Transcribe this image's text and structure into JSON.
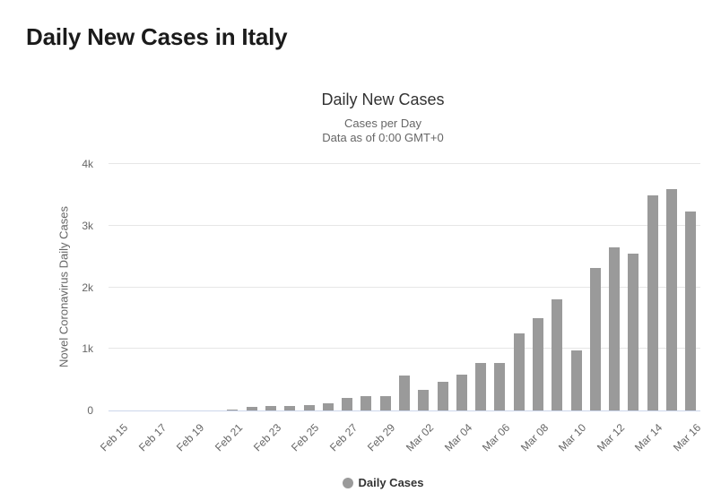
{
  "page": {
    "title": "Daily New Cases in Italy"
  },
  "chart_data": {
    "type": "bar",
    "title": "Daily New Cases",
    "subtitle_line1": "Cases per Day",
    "subtitle_line2": "Data as of 0:00 GMT+0",
    "ylabel": "Novel Coronavirus Daily Cases",
    "legend": "Daily Cases",
    "ylim": [
      0,
      4000
    ],
    "grid": true,
    "legend_position": "bottom",
    "yticks": [
      {
        "value": 0,
        "label": "0"
      },
      {
        "value": 1000,
        "label": "1k"
      },
      {
        "value": 2000,
        "label": "2k"
      },
      {
        "value": 3000,
        "label": "3k"
      },
      {
        "value": 4000,
        "label": "4k"
      }
    ],
    "x_label_every": 2,
    "categories": [
      "Feb 15",
      "Feb 16",
      "Feb 17",
      "Feb 18",
      "Feb 19",
      "Feb 20",
      "Feb 21",
      "Feb 22",
      "Feb 23",
      "Feb 24",
      "Feb 25",
      "Feb 26",
      "Feb 27",
      "Feb 28",
      "Feb 29",
      "Mar 01",
      "Mar 02",
      "Mar 03",
      "Mar 04",
      "Mar 05",
      "Mar 06",
      "Mar 07",
      "Mar 08",
      "Mar 09",
      "Mar 10",
      "Mar 11",
      "Mar 12",
      "Mar 13",
      "Mar 14",
      "Mar 15",
      "Mar 16"
    ],
    "values": [
      0,
      0,
      0,
      0,
      0,
      0,
      17,
      59,
      73,
      77,
      93,
      123,
      205,
      238,
      240,
      566,
      342,
      466,
      587,
      769,
      778,
      1247,
      1492,
      1797,
      977,
      2313,
      2651,
      2547,
      3497,
      3590,
      3233
    ],
    "colors": {
      "bar": "#9a9a9a",
      "gridline": "#e6e6e6",
      "axis_line": "#ccd6eb",
      "tick_text": "#666666",
      "title_text": "#333333",
      "subtitle_text": "#666666",
      "legend_text": "#333333"
    }
  }
}
